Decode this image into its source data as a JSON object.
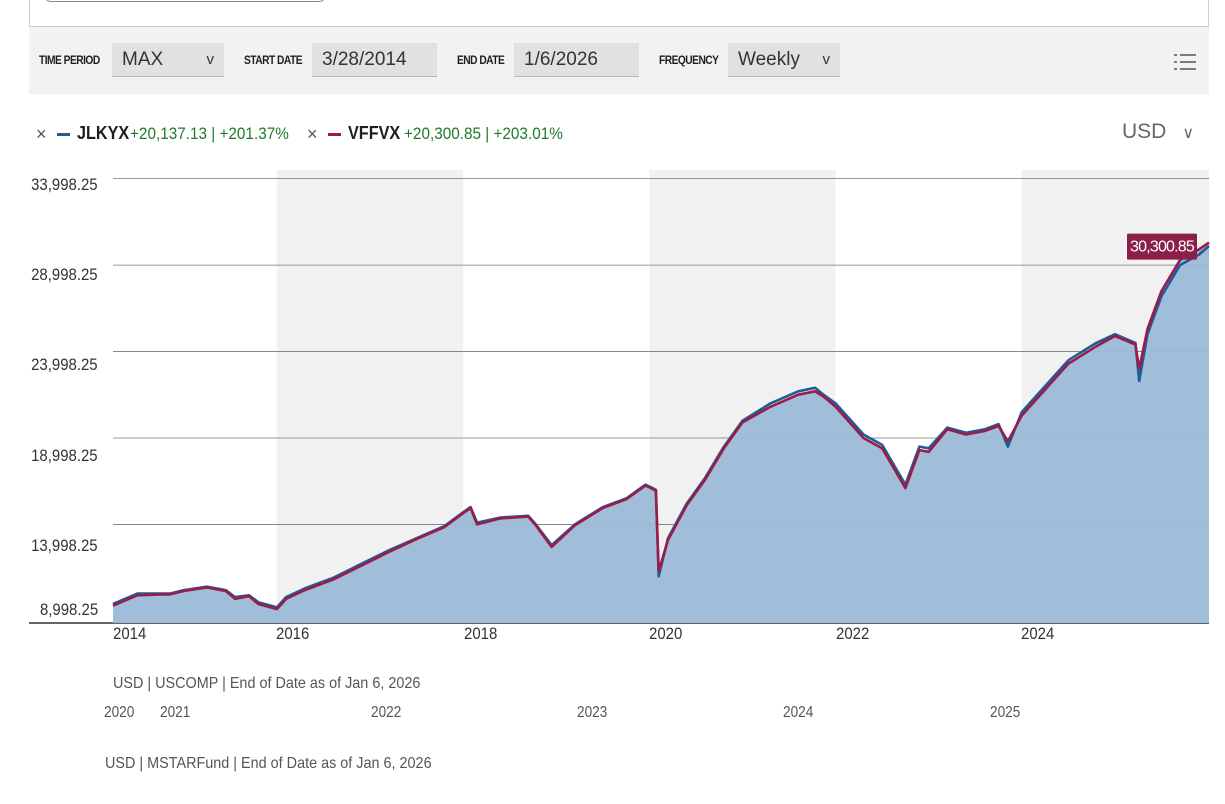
{
  "toolbar": {
    "time_period_label": "TIME PERIOD",
    "time_period_value": "MAX",
    "start_date_label": "START DATE",
    "start_date_value": "3/28/2014",
    "end_date_label": "END DATE",
    "end_date_value": "1/6/2026",
    "frequency_label": "FREQUENCY",
    "frequency_value": "Weekly",
    "chevron": "v"
  },
  "legend": [
    {
      "ticker": "JLKYX",
      "change": "+20,137.13 | +201.37%",
      "color": "#1f5c99",
      "remove": "×"
    },
    {
      "ticker": "VFFVX",
      "change": "+20,300.85 | +203.01%",
      "color": "#9b1c47",
      "remove": "×"
    }
  ],
  "currency": {
    "value": "USD",
    "chevron": "∨"
  },
  "value_flag": {
    "text": "30,300.85",
    "color": "#8a1f4a"
  },
  "colors": {
    "area": "#9bbad8",
    "shade_band": "#f1f1f1",
    "gridline": "#777777",
    "positive": "#1e7a2a"
  },
  "footers": {
    "primary": "USD | USCOMP | End of Date as of Jan 6, 2026",
    "secondary": "USD | MSTARFund | End of Date as of Jan 6, 2026"
  },
  "secondary_axis_ticks": [
    "2020",
    "2021",
    "2022",
    "2023",
    "2024",
    "2025"
  ],
  "chart_data": {
    "type": "area",
    "title": "",
    "xlabel": "",
    "ylabel": "",
    "x_ticks": [
      "2014",
      "2016",
      "2018",
      "2020",
      "2022",
      "2024"
    ],
    "y_ticks": [
      "33,998.25",
      "28,998.25",
      "23,998.25",
      "18,998.25",
      "13,998.25",
      "8,998.25"
    ],
    "ylim": [
      8998.25,
      33998.25
    ],
    "xlim": [
      2014.24,
      2026.01
    ],
    "grid": true,
    "legend_position": "top-left",
    "series": [
      {
        "name": "JLKYX",
        "color": "#1f5c99",
        "x": [
          2014.24,
          2014.5,
          2014.75,
          2014.85,
          2015.0,
          2015.25,
          2015.45,
          2015.55,
          2015.7,
          2015.8,
          2016.0,
          2016.1,
          2016.3,
          2016.6,
          2016.9,
          2017.2,
          2017.5,
          2017.8,
          2018.0,
          2018.08,
          2018.15,
          2018.4,
          2018.7,
          2018.78,
          2018.95,
          2019.2,
          2019.5,
          2019.75,
          2019.96,
          2020.07,
          2020.1,
          2020.2,
          2020.4,
          2020.6,
          2020.8,
          2021.0,
          2021.3,
          2021.6,
          2021.78,
          2021.87,
          2022.0,
          2022.3,
          2022.5,
          2022.75,
          2022.9,
          2023.0,
          2023.2,
          2023.4,
          2023.6,
          2023.75,
          2023.85,
          2024.0,
          2024.25,
          2024.5,
          2024.8,
          2025.0,
          2025.22,
          2025.26,
          2025.35,
          2025.5,
          2025.7,
          2025.9,
          2026.01
        ],
        "y": [
          9400,
          10000,
          10000,
          10000,
          10200,
          10400,
          10200,
          9800,
          9900,
          9500,
          9200,
          9800,
          10300,
          10900,
          11700,
          12500,
          13200,
          13900,
          14700,
          15000,
          14100,
          14400,
          14500,
          14000,
          12800,
          14000,
          15000,
          15500,
          16300,
          16000,
          11000,
          13200,
          15200,
          16700,
          18500,
          20000,
          21000,
          21700,
          21900,
          21500,
          21000,
          19200,
          18600,
          16300,
          18500,
          18400,
          19600,
          19300,
          19500,
          19800,
          18500,
          20500,
          22000,
          23500,
          24500,
          25000,
          24500,
          22300,
          25000,
          27200,
          29000,
          29600,
          30100
        ]
      },
      {
        "name": "VFFVX",
        "color": "#9b1c47",
        "x": [
          2014.24,
          2014.5,
          2014.75,
          2014.85,
          2015.0,
          2015.25,
          2015.45,
          2015.55,
          2015.7,
          2015.8,
          2016.0,
          2016.1,
          2016.3,
          2016.6,
          2016.9,
          2017.2,
          2017.5,
          2017.8,
          2018.0,
          2018.08,
          2018.15,
          2018.4,
          2018.7,
          2018.78,
          2018.95,
          2019.2,
          2019.5,
          2019.75,
          2019.96,
          2020.07,
          2020.1,
          2020.2,
          2020.4,
          2020.6,
          2020.8,
          2021.0,
          2021.3,
          2021.6,
          2021.78,
          2021.87,
          2022.0,
          2022.3,
          2022.5,
          2022.75,
          2022.9,
          2023.0,
          2023.2,
          2023.4,
          2023.6,
          2023.75,
          2023.85,
          2024.0,
          2024.25,
          2024.5,
          2024.8,
          2025.0,
          2025.22,
          2025.26,
          2025.35,
          2025.5,
          2025.7,
          2025.9,
          2026.01
        ],
        "y": [
          9300,
          9900,
          9950,
          9950,
          10150,
          10350,
          10150,
          9700,
          9850,
          9400,
          9100,
          9700,
          10200,
          10800,
          11600,
          12400,
          13150,
          13850,
          14650,
          14950,
          14000,
          14350,
          14450,
          13950,
          12700,
          13950,
          14950,
          15450,
          16250,
          15950,
          11300,
          13100,
          15100,
          16600,
          18400,
          19900,
          20800,
          21500,
          21700,
          21400,
          20800,
          19000,
          18400,
          16100,
          18300,
          18200,
          19500,
          19200,
          19400,
          19700,
          18800,
          20300,
          21800,
          23300,
          24300,
          24900,
          24400,
          23000,
          25300,
          27500,
          29300,
          29900,
          30300
        ]
      }
    ]
  }
}
